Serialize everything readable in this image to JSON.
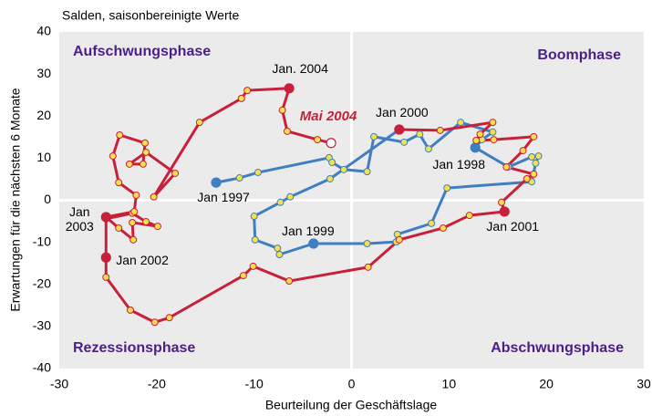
{
  "chart_data": {
    "type": "line",
    "subtitle": "Salden, saisonbereinigte Werte",
    "x_label": "Beurteilung der Geschäftslage",
    "y_label": "Erwartungen für die nächsten 6 Monate",
    "quadrant_labels": [
      "Aufschwungsphase",
      "Boomphase",
      "Rezessionsphase",
      "Abschwungsphase"
    ],
    "xlim": [
      -30,
      30
    ],
    "xticks": [
      -30,
      -20,
      -10,
      0,
      10,
      20,
      30
    ],
    "ylim": [
      -40,
      40
    ],
    "yticks": [
      -40,
      -30,
      -20,
      -10,
      0,
      10,
      20,
      30,
      40
    ],
    "series": [
      {
        "color": "#3f7fc1",
        "x": [
          -13.9,
          -11.5,
          -9.6,
          -2.3,
          -2.0,
          -0.8,
          1.6,
          2.3,
          5.4,
          7.0,
          7.9,
          11.2,
          14.5,
          13.4,
          12.7,
          16.1,
          18.5,
          19.2,
          18.9,
          18.5,
          9.8,
          8.2,
          4.7,
          4.6,
          1.6,
          -3.9,
          -7.4,
          -7.6,
          -9.9,
          -10.0,
          -7.3,
          -6.3,
          -2.2,
          4.9
        ],
        "values": [
          4.2,
          5.3,
          6.6,
          10.1,
          9.0,
          7.3,
          6.8,
          15.1,
          13.8,
          15.7,
          12.2,
          18.5,
          16.2,
          14.4,
          12.5,
          7.9,
          10.3,
          10.5,
          8.8,
          4.4,
          2.9,
          -5.5,
          -8.1,
          -9.9,
          -10.3,
          -10.3,
          -12.9,
          -11.4,
          -9.4,
          -3.8,
          -0.5,
          0.8,
          5.1,
          16.8
        ],
        "point_labels": [
          "Jan 1997",
          null,
          null,
          null,
          null,
          null,
          null,
          null,
          null,
          null,
          null,
          null,
          null,
          null,
          "Jan 1998",
          null,
          null,
          null,
          null,
          null,
          null,
          null,
          null,
          null,
          null,
          "Jan 1999",
          null,
          null,
          null,
          null,
          null,
          null,
          null,
          null
        ]
      },
      {
        "color": "#c8203a",
        "x": [
          4.9,
          9.1,
          14.5,
          13.2,
          12.8,
          14.6,
          18.7,
          17.6,
          15.9,
          18.7,
          18.0,
          15.4,
          15.7,
          12.1,
          9.4,
          4.9,
          1.7,
          -6.4,
          -10.1,
          -11.1,
          -18.7,
          -20.2,
          -22.7,
          -25.2,
          -25.2,
          -25.2,
          -22.5,
          -21.1,
          -19.9,
          -22.5,
          -22.4,
          -23.9,
          -25.2,
          -22.3,
          -22.1,
          -23.9,
          -24.5,
          -23.8,
          -21.2,
          -21.4,
          -22.8,
          -21.1,
          -18.1,
          -20.3,
          -15.6,
          -11.3,
          -10.7,
          -6.4,
          -7.1,
          -6.6,
          -3.5,
          -2.1
        ],
        "values": [
          16.8,
          16.6,
          18.5,
          15.7,
          14.2,
          14.4,
          15.1,
          11.8,
          7.9,
          6.2,
          5.1,
          -0.5,
          -2.7,
          -3.6,
          -6.6,
          -9.4,
          -15.9,
          -19.2,
          -15.7,
          -17.9,
          -27.9,
          -29.0,
          -26.1,
          -18.3,
          -13.6,
          -4.4,
          -3.1,
          -5.1,
          -6.2,
          -5.3,
          -9.4,
          -6.6,
          -4.0,
          -2.7,
          1.2,
          4.2,
          10.5,
          15.5,
          13.6,
          8.6,
          8.6,
          11.4,
          6.4,
          0.8,
          18.5,
          24.2,
          26.1,
          26.6,
          21.4,
          16.4,
          14.4,
          13.6
        ],
        "point_labels": [
          "Jan 2000",
          null,
          null,
          null,
          null,
          null,
          null,
          null,
          null,
          null,
          null,
          null,
          "Jan 2001",
          null,
          null,
          null,
          null,
          null,
          null,
          null,
          null,
          null,
          null,
          null,
          "Jan 2002",
          null,
          null,
          null,
          null,
          null,
          null,
          null,
          "Jan 2003",
          null,
          null,
          null,
          null,
          null,
          null,
          null,
          null,
          null,
          null,
          null,
          null,
          null,
          null,
          "Jan. 2004",
          null,
          null,
          null,
          "Mai 2004"
        ]
      }
    ]
  }
}
